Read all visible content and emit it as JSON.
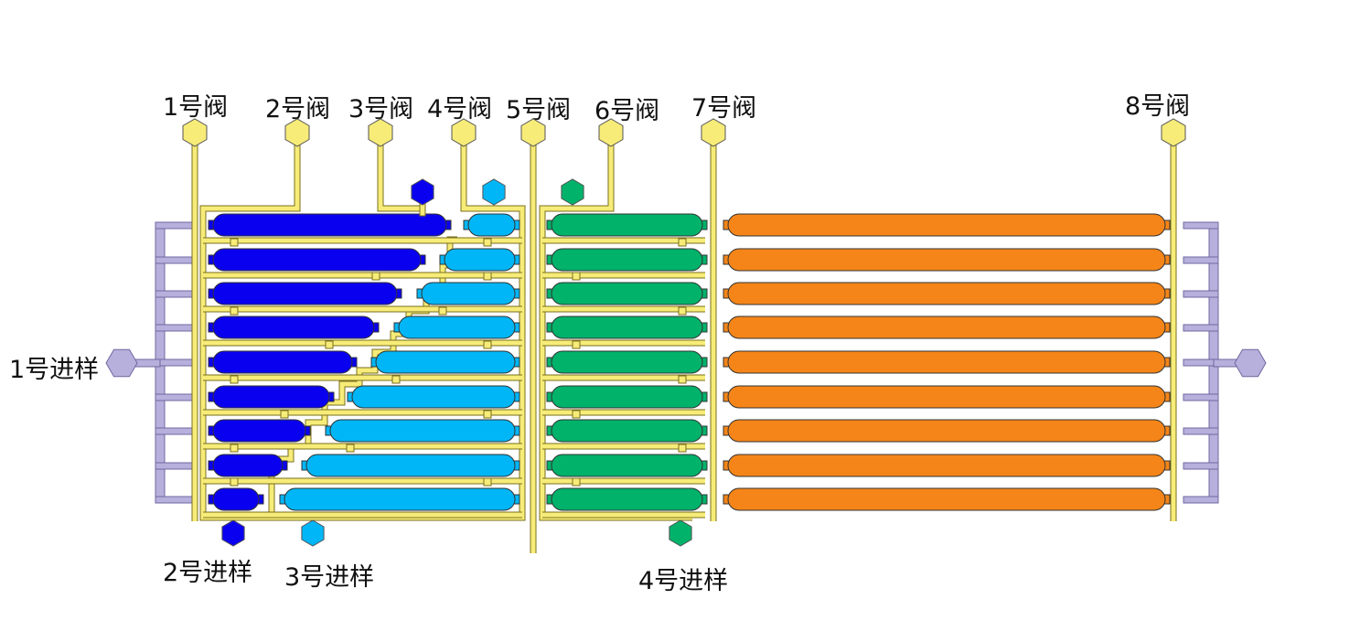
{
  "valves": [
    "1号阀",
    "2号阀",
    "3号阀",
    "4号阀",
    "5号阀",
    "6号阀",
    "7号阀",
    "8号阀"
  ],
  "inlets": [
    "1号进样",
    "2号进样",
    "3号进样",
    "4号进样"
  ],
  "colors": {
    "valve_line": "#f7ec78",
    "line_stroke": "#7a6f1e",
    "inlet1": "#b7b0dc",
    "group_blue": "#0a00f0",
    "group_cyan": "#00b6f6",
    "group_green": "#00b26a",
    "group_orange": "#f58518",
    "chamber_stroke": "#333333"
  }
}
